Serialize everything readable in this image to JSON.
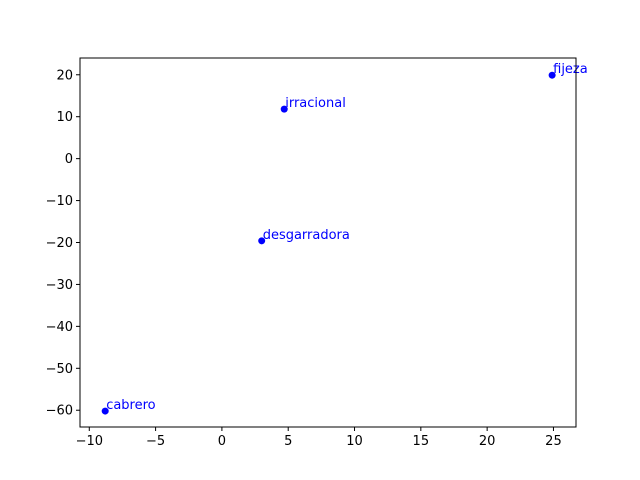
{
  "chart_data": {
    "type": "scatter",
    "title": "",
    "xlabel": "",
    "ylabel": "",
    "xlim": [
      -10.7,
      26.7
    ],
    "ylim": [
      -64.0,
      24.0
    ],
    "xticks": [
      -10,
      -5,
      0,
      5,
      10,
      15,
      20,
      25
    ],
    "yticks": [
      20,
      10,
      0,
      -10,
      -20,
      -30,
      -40,
      -50,
      -60
    ],
    "grid": false,
    "point_color": "#0000ff",
    "label_color": "#0000ff",
    "points": [
      {
        "label": "fijeza",
        "x": 24.9,
        "y": 19.9
      },
      {
        "label": "irracional",
        "x": 4.7,
        "y": 11.8
      },
      {
        "label": "desgarradora",
        "x": 3.0,
        "y": -19.6
      },
      {
        "label": "cabrero",
        "x": -8.8,
        "y": -60.2
      }
    ]
  }
}
